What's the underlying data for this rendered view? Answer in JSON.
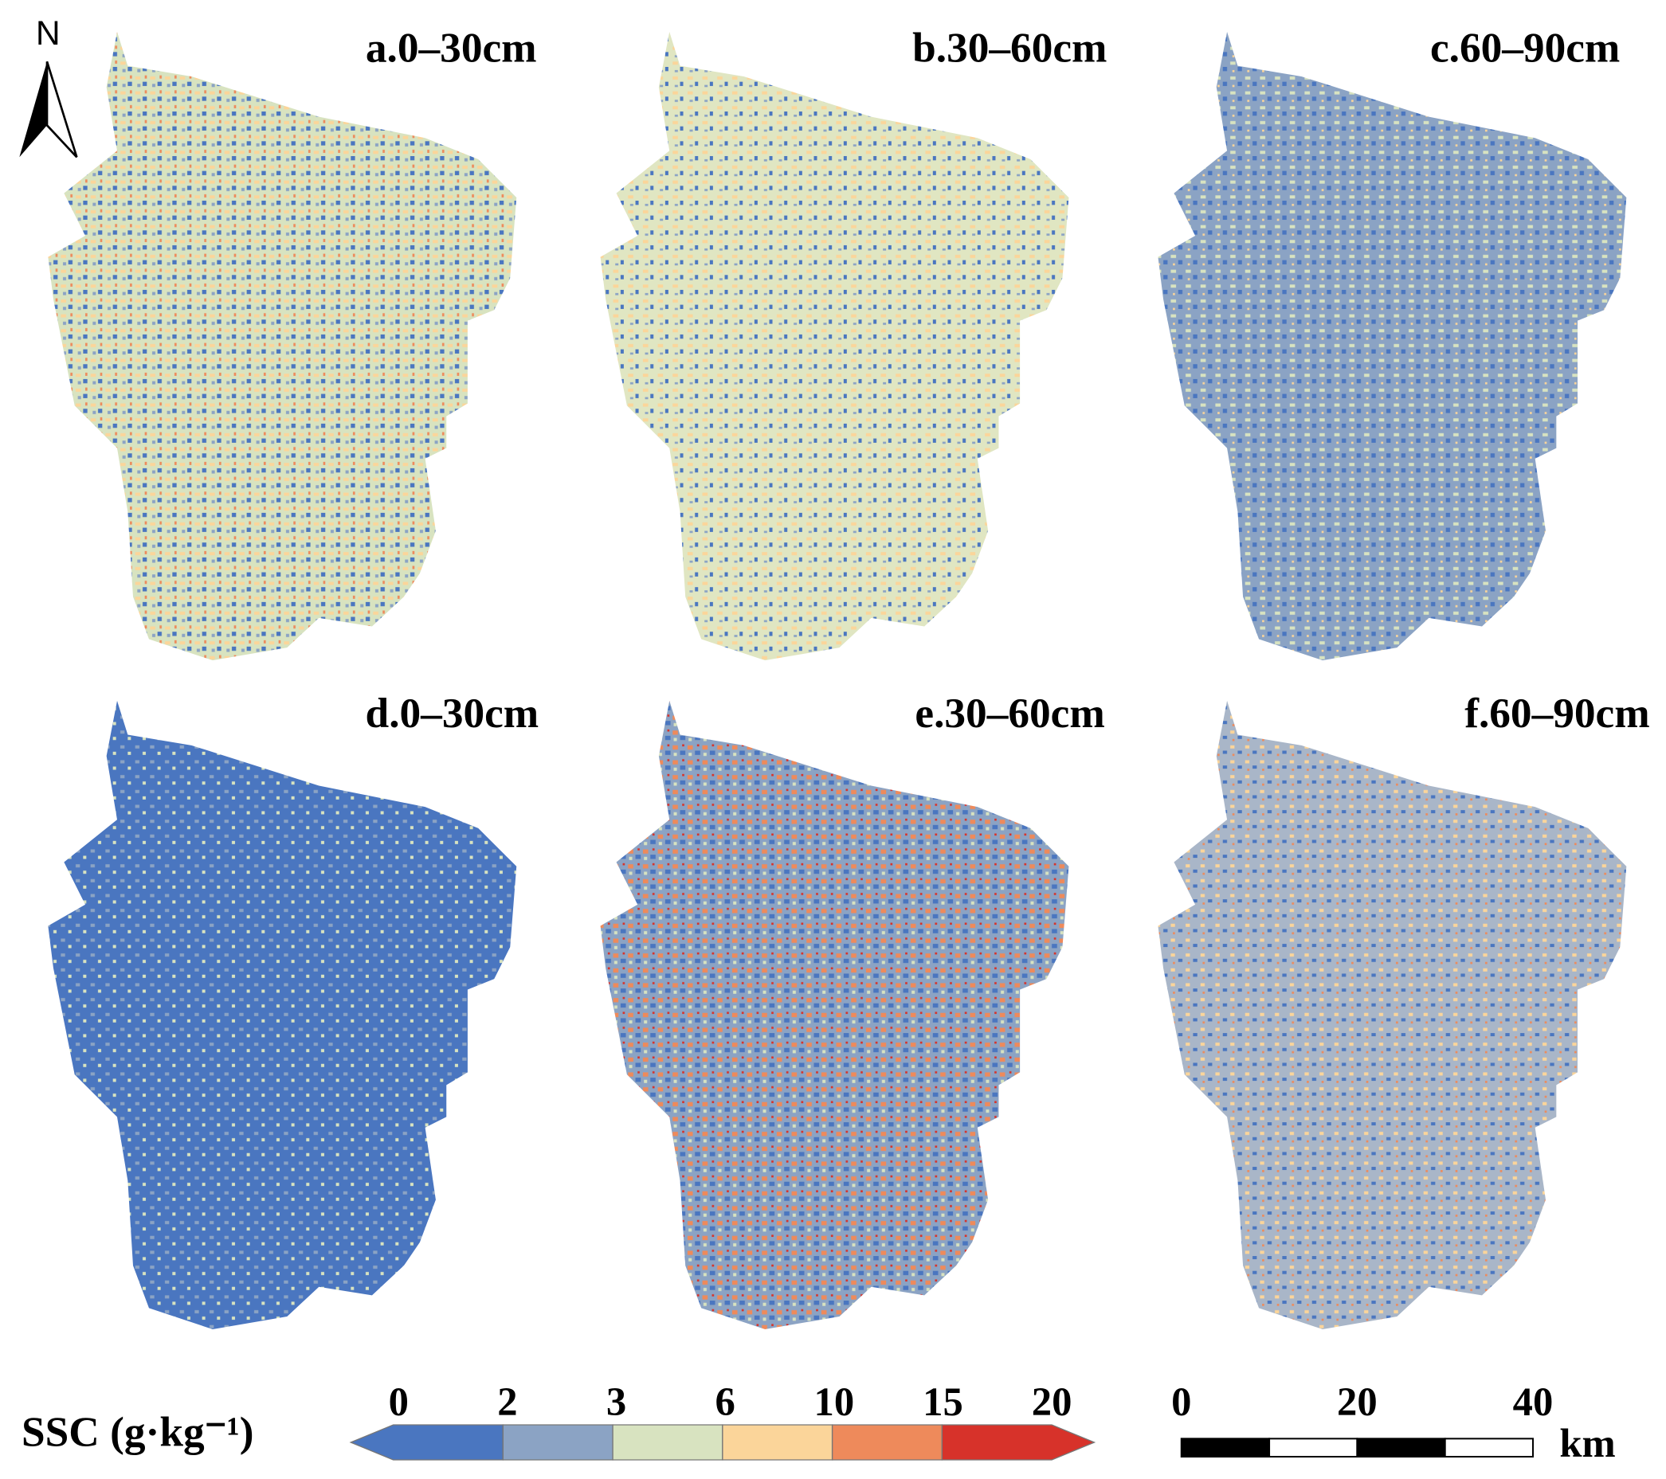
{
  "north": "N",
  "panels": [
    {
      "label": "a.0–30cm"
    },
    {
      "label": "b.30–60cm"
    },
    {
      "label": "c.60–90cm"
    },
    {
      "label": "d.0–30cm"
    },
    {
      "label": "e.30–60cm"
    },
    {
      "label": "f.60–90cm"
    }
  ],
  "legend": {
    "title": "SSC (g·kg⁻¹)",
    "ticks": [
      0,
      2,
      3,
      6,
      10,
      15,
      20
    ],
    "colors": [
      "#4a76c0",
      "#8ba3c4",
      "#d8e3c0",
      "#fbd59a",
      "#ee8a5b",
      "#d7322a"
    ]
  },
  "scale_bar": {
    "ticks": [
      0,
      20,
      40
    ],
    "unit": "km"
  }
}
